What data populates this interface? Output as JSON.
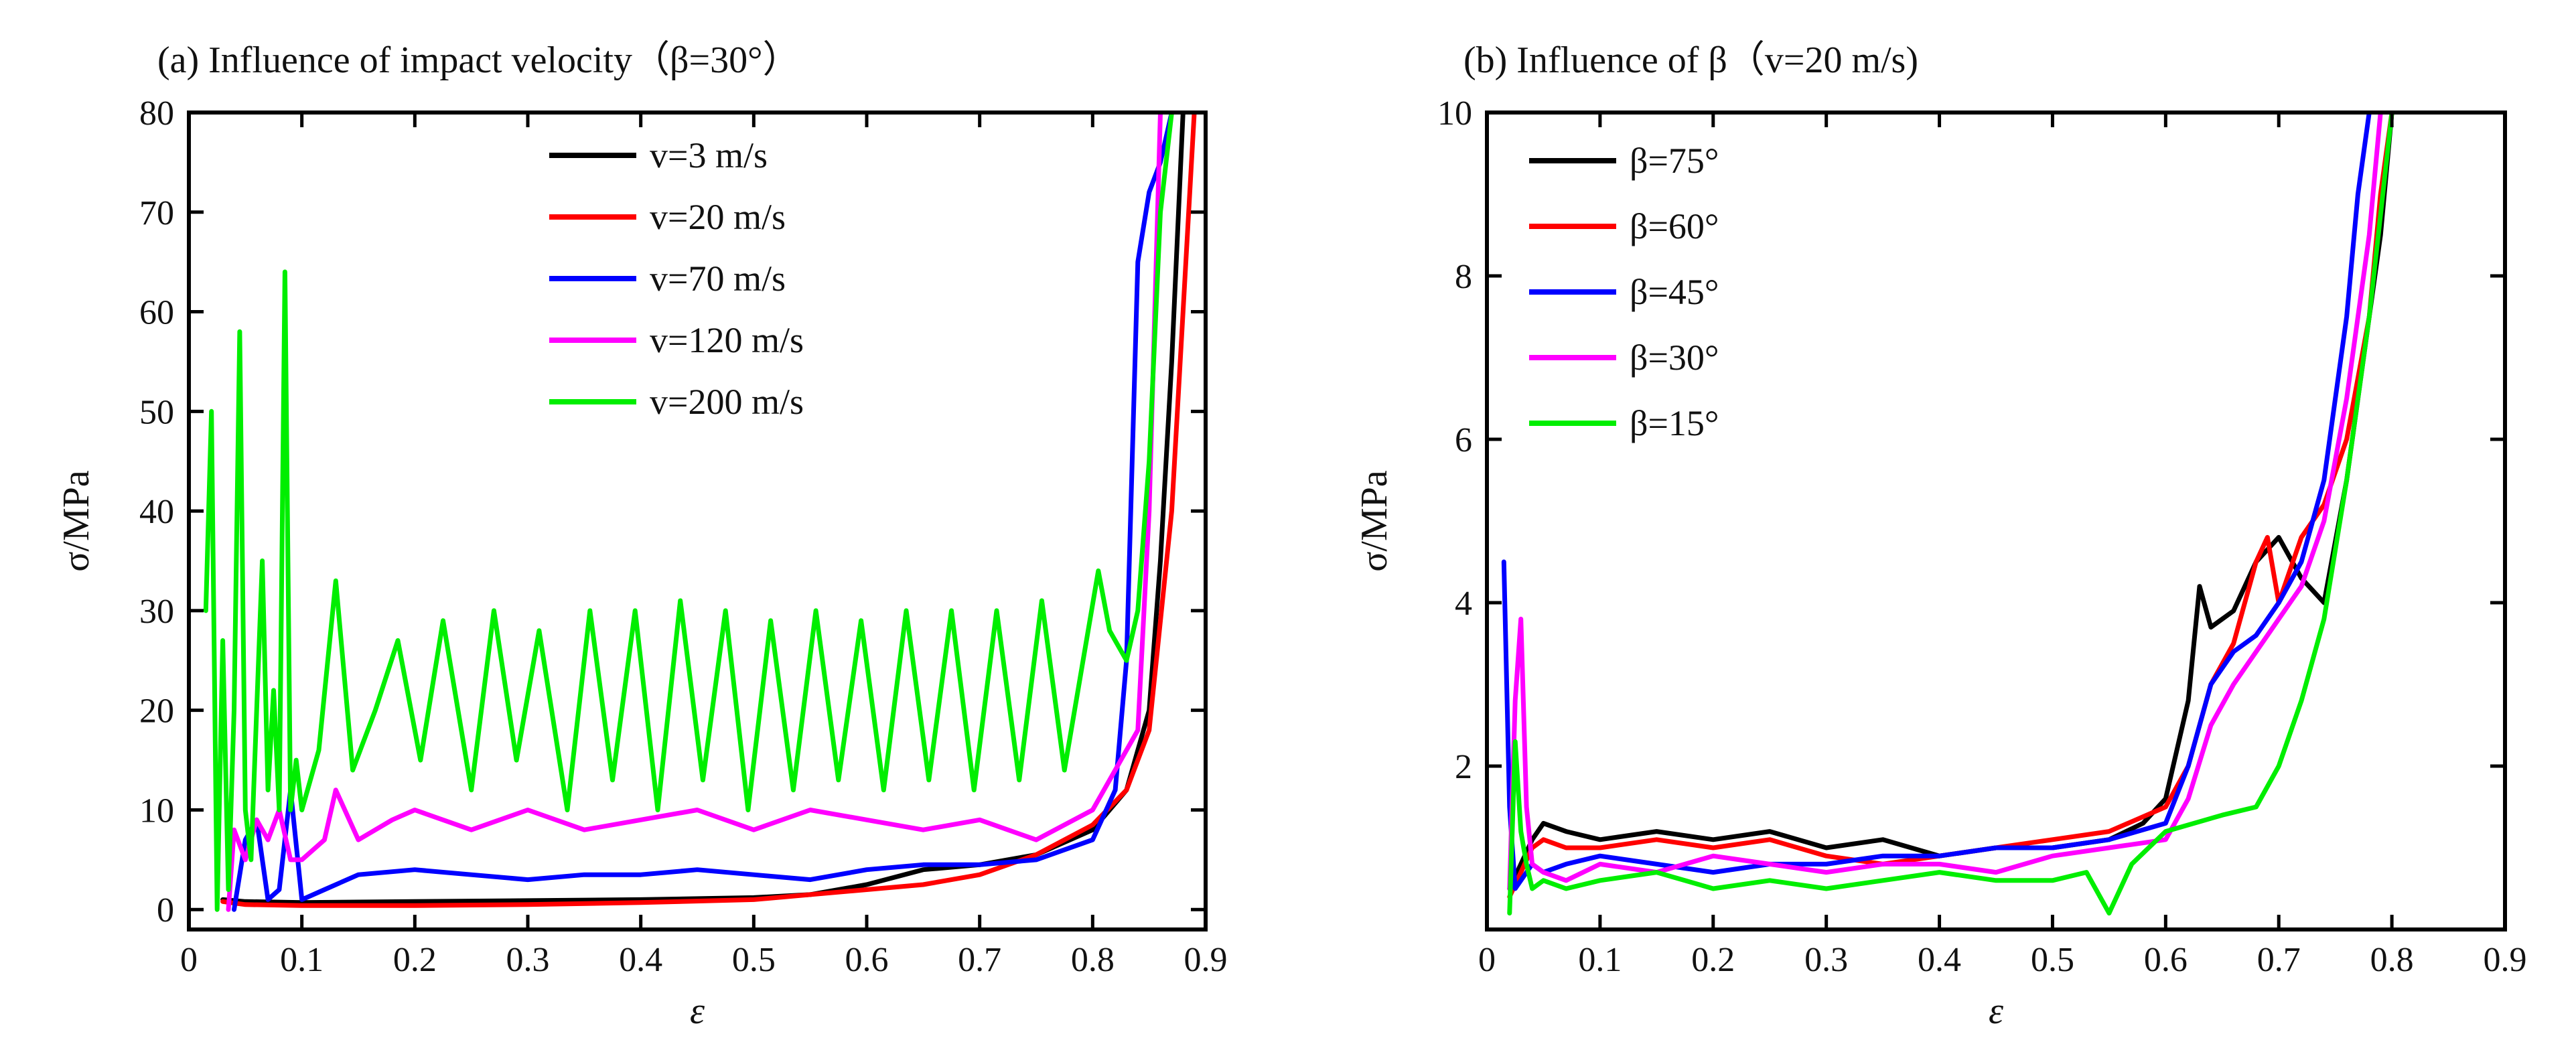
{
  "figure": {
    "panel_a_title": "(a) Influence of impact velocity（β=30°）",
    "panel_b_title": "(b) Influence of β（v=20 m/s)"
  },
  "chart_data": [
    {
      "type": "line",
      "title": "(a) Influence of impact velocity（β=30°）",
      "xlabel": "ε",
      "ylabel": "σ/MPa",
      "xlim": [
        0,
        0.9
      ],
      "ylim": [
        -2,
        80
      ],
      "xticks": [
        0,
        0.1,
        0.2,
        0.3,
        0.4,
        0.5,
        0.6,
        0.7,
        0.8,
        0.9
      ],
      "xtick_labels": [
        "0",
        "0.1",
        "0.2",
        "0.3",
        "0.4",
        "0.5",
        "0.6",
        "0.7",
        "0.8",
        "0.9"
      ],
      "yticks": [
        0,
        10,
        20,
        30,
        40,
        50,
        60,
        70,
        80
      ],
      "ytick_labels": [
        "0",
        "10",
        "20",
        "30",
        "40",
        "50",
        "60",
        "70",
        "80"
      ],
      "grid": false,
      "legend_position": "top-center",
      "series": [
        {
          "name": "v=3 m/s",
          "color": "#000000",
          "x": [
            0.03,
            0.05,
            0.1,
            0.2,
            0.3,
            0.4,
            0.5,
            0.55,
            0.6,
            0.65,
            0.7,
            0.75,
            0.8,
            0.83,
            0.85,
            0.86,
            0.87,
            0.88
          ],
          "y": [
            1,
            0.8,
            0.7,
            0.8,
            0.9,
            1.0,
            1.2,
            1.5,
            2.5,
            4,
            4.5,
            5.5,
            8,
            12,
            20,
            35,
            55,
            80
          ]
        },
        {
          "name": "v=20 m/s",
          "color": "#ff0000",
          "x": [
            0.03,
            0.05,
            0.1,
            0.2,
            0.3,
            0.4,
            0.5,
            0.55,
            0.6,
            0.65,
            0.7,
            0.75,
            0.8,
            0.83,
            0.85,
            0.87,
            0.88,
            0.89
          ],
          "y": [
            0.8,
            0.5,
            0.4,
            0.4,
            0.5,
            0.7,
            1.0,
            1.5,
            2,
            2.5,
            3.5,
            5.5,
            8.5,
            12,
            18,
            40,
            60,
            80
          ]
        },
        {
          "name": "v=70 m/s",
          "color": "#0000ff",
          "x": [
            0.04,
            0.05,
            0.06,
            0.07,
            0.08,
            0.09,
            0.1,
            0.12,
            0.15,
            0.2,
            0.25,
            0.3,
            0.35,
            0.4,
            0.45,
            0.5,
            0.55,
            0.6,
            0.65,
            0.7,
            0.75,
            0.8,
            0.82,
            0.83,
            0.84,
            0.85,
            0.86,
            0.87
          ],
          "y": [
            0,
            7,
            9,
            1,
            2,
            12,
            1,
            2,
            3.5,
            4,
            3.5,
            3,
            3.5,
            3.5,
            4,
            3.5,
            3,
            4,
            4.5,
            4.5,
            5,
            7,
            12,
            25,
            65,
            72,
            75,
            80
          ]
        },
        {
          "name": "v=120 m/s",
          "color": "#ff00ff",
          "x": [
            0.035,
            0.04,
            0.05,
            0.06,
            0.07,
            0.08,
            0.09,
            0.1,
            0.12,
            0.13,
            0.15,
            0.18,
            0.2,
            0.25,
            0.3,
            0.35,
            0.4,
            0.45,
            0.5,
            0.55,
            0.6,
            0.65,
            0.7,
            0.75,
            0.8,
            0.84,
            0.85,
            0.86
          ],
          "y": [
            0,
            8,
            5,
            9,
            7,
            10,
            5,
            5,
            7,
            12,
            7,
            9,
            10,
            8,
            10,
            8,
            9,
            10,
            8,
            10,
            9,
            8,
            9,
            7,
            10,
            18,
            40,
            80
          ]
        },
        {
          "name": "v=200 m/s",
          "color": "#00ee00",
          "x": [
            0.015,
            0.02,
            0.025,
            0.03,
            0.035,
            0.04,
            0.045,
            0.05,
            0.055,
            0.06,
            0.065,
            0.07,
            0.075,
            0.08,
            0.085,
            0.09,
            0.095,
            0.1,
            0.115,
            0.13,
            0.145,
            0.165,
            0.185,
            0.205,
            0.225,
            0.25,
            0.27,
            0.29,
            0.31,
            0.335,
            0.355,
            0.375,
            0.395,
            0.415,
            0.435,
            0.455,
            0.475,
            0.495,
            0.515,
            0.535,
            0.555,
            0.575,
            0.595,
            0.615,
            0.635,
            0.655,
            0.675,
            0.695,
            0.715,
            0.735,
            0.755,
            0.775,
            0.79,
            0.805,
            0.815,
            0.83,
            0.84,
            0.85,
            0.86,
            0.87
          ],
          "y": [
            30,
            50,
            0,
            27,
            2,
            20,
            58,
            10,
            5,
            20,
            35,
            12,
            22,
            10,
            64,
            10,
            15,
            10,
            16,
            33,
            14,
            20,
            27,
            15,
            29,
            12,
            30,
            15,
            28,
            10,
            30,
            13,
            30,
            10,
            31,
            13,
            30,
            10,
            29,
            12,
            30,
            13,
            29,
            12,
            30,
            13,
            30,
            12,
            30,
            13,
            31,
            14,
            24,
            34,
            28,
            25,
            30,
            45,
            70,
            80
          ]
        }
      ]
    },
    {
      "type": "line",
      "title": "(b) Influence of β（v=20 m/s)",
      "xlabel": "ε",
      "ylabel": "σ/MPa",
      "xlim": [
        0,
        0.9
      ],
      "ylim": [
        0,
        10
      ],
      "xticks": [
        0,
        0.1,
        0.2,
        0.3,
        0.4,
        0.5,
        0.6,
        0.7,
        0.8,
        0.9
      ],
      "xtick_labels": [
        "0",
        "0.1",
        "0.2",
        "0.3",
        "0.4",
        "0.5",
        "0.6",
        "0.7",
        "0.8",
        "0.9"
      ],
      "yticks": [
        2,
        4,
        6,
        8,
        10
      ],
      "ytick_labels": [
        "2",
        "4",
        "6",
        "8",
        "10"
      ],
      "grid": false,
      "legend_position": "top-left",
      "series": [
        {
          "name": "β=75°",
          "color": "#000000",
          "x": [
            0.02,
            0.03,
            0.04,
            0.05,
            0.07,
            0.1,
            0.15,
            0.2,
            0.25,
            0.3,
            0.35,
            0.4,
            0.45,
            0.5,
            0.55,
            0.58,
            0.6,
            0.62,
            0.63,
            0.64,
            0.66,
            0.68,
            0.7,
            0.72,
            0.74,
            0.76,
            0.78,
            0.79,
            0.8
          ],
          "y": [
            0.5,
            0.8,
            1.1,
            1.3,
            1.2,
            1.1,
            1.2,
            1.1,
            1.2,
            1.0,
            1.1,
            0.9,
            1.0,
            1.0,
            1.1,
            1.3,
            1.6,
            2.8,
            4.2,
            3.7,
            3.9,
            4.5,
            4.8,
            4.3,
            4.0,
            5.5,
            7.5,
            8.5,
            10
          ]
        },
        {
          "name": "β=60°",
          "color": "#ff0000",
          "x": [
            0.02,
            0.03,
            0.04,
            0.05,
            0.07,
            0.1,
            0.15,
            0.2,
            0.25,
            0.3,
            0.35,
            0.4,
            0.45,
            0.5,
            0.55,
            0.6,
            0.62,
            0.64,
            0.66,
            0.68,
            0.69,
            0.7,
            0.72,
            0.74,
            0.76,
            0.78,
            0.79,
            0.8
          ],
          "y": [
            0.4,
            0.7,
            1.0,
            1.1,
            1.0,
            1.0,
            1.1,
            1.0,
            1.1,
            0.9,
            0.8,
            0.9,
            1.0,
            1.1,
            1.2,
            1.5,
            2.0,
            3.0,
            3.5,
            4.5,
            4.8,
            4.0,
            4.8,
            5.2,
            6.0,
            7.5,
            9.0,
            10
          ]
        },
        {
          "name": "β=45°",
          "color": "#0000ff",
          "x": [
            0.015,
            0.02,
            0.025,
            0.03,
            0.04,
            0.05,
            0.07,
            0.1,
            0.15,
            0.2,
            0.25,
            0.3,
            0.35,
            0.4,
            0.45,
            0.5,
            0.55,
            0.6,
            0.62,
            0.64,
            0.66,
            0.68,
            0.7,
            0.72,
            0.74,
            0.76,
            0.77,
            0.78
          ],
          "y": [
            4.5,
            1.5,
            0.5,
            0.6,
            0.8,
            0.7,
            0.8,
            0.9,
            0.8,
            0.7,
            0.8,
            0.8,
            0.9,
            0.9,
            1.0,
            1.0,
            1.1,
            1.3,
            2.0,
            3.0,
            3.4,
            3.6,
            4.0,
            4.5,
            5.5,
            7.5,
            9.0,
            10
          ]
        },
        {
          "name": "β=30°",
          "color": "#ff00ff",
          "x": [
            0.02,
            0.025,
            0.03,
            0.035,
            0.04,
            0.05,
            0.07,
            0.1,
            0.15,
            0.2,
            0.25,
            0.3,
            0.35,
            0.4,
            0.45,
            0.5,
            0.55,
            0.6,
            0.62,
            0.64,
            0.66,
            0.68,
            0.7,
            0.72,
            0.74,
            0.76,
            0.78,
            0.79
          ],
          "y": [
            0.5,
            2.8,
            3.8,
            1.5,
            0.8,
            0.7,
            0.6,
            0.8,
            0.7,
            0.9,
            0.8,
            0.7,
            0.8,
            0.8,
            0.7,
            0.9,
            1.0,
            1.1,
            1.6,
            2.5,
            3.0,
            3.4,
            3.8,
            4.2,
            5.0,
            6.5,
            8.5,
            10
          ]
        },
        {
          "name": "β=15°",
          "color": "#00ee00",
          "x": [
            0.02,
            0.025,
            0.03,
            0.035,
            0.04,
            0.05,
            0.07,
            0.1,
            0.15,
            0.2,
            0.25,
            0.3,
            0.35,
            0.4,
            0.45,
            0.5,
            0.53,
            0.55,
            0.57,
            0.6,
            0.65,
            0.68,
            0.7,
            0.72,
            0.74,
            0.76,
            0.78,
            0.8
          ],
          "y": [
            0.2,
            2.3,
            1.2,
            0.8,
            0.5,
            0.6,
            0.5,
            0.6,
            0.7,
            0.5,
            0.6,
            0.5,
            0.6,
            0.7,
            0.6,
            0.6,
            0.7,
            0.2,
            0.8,
            1.2,
            1.4,
            1.5,
            2.0,
            2.8,
            3.8,
            5.5,
            7.5,
            10
          ]
        }
      ]
    }
  ]
}
